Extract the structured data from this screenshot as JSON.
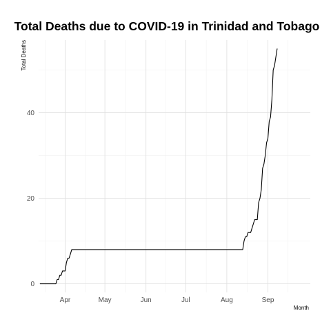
{
  "chart_data": {
    "type": "line",
    "title": "Total Deaths due to COVID-19 in Trinidad and Tobago",
    "xlabel": "Month",
    "ylabel": "Total Deaths",
    "x_tick_labels": [
      "Apr",
      "May",
      "Jun",
      "Jul",
      "Aug",
      "Sep"
    ],
    "y_tick_labels": [
      "0",
      "20",
      "40"
    ],
    "y_ticks": [
      0,
      20,
      40
    ],
    "ylim": [
      -2,
      57
    ],
    "xlim": [
      "2020-03-12",
      "2020-10-03"
    ],
    "grid": true,
    "series": [
      {
        "color": "#000000",
        "points": [
          [
            "2020-03-13",
            0
          ],
          [
            "2020-03-25",
            0
          ],
          [
            "2020-03-26",
            1
          ],
          [
            "2020-03-27",
            1
          ],
          [
            "2020-03-28",
            2
          ],
          [
            "2020-03-29",
            2
          ],
          [
            "2020-03-30",
            3
          ],
          [
            "2020-04-01",
            3
          ],
          [
            "2020-04-02",
            5
          ],
          [
            "2020-04-03",
            6
          ],
          [
            "2020-04-04",
            6
          ],
          [
            "2020-04-05",
            7
          ],
          [
            "2020-04-06",
            8
          ],
          [
            "2020-08-13",
            8
          ],
          [
            "2020-08-14",
            10
          ],
          [
            "2020-08-15",
            11
          ],
          [
            "2020-08-16",
            11
          ],
          [
            "2020-08-17",
            12
          ],
          [
            "2020-08-19",
            12
          ],
          [
            "2020-08-20",
            13
          ],
          [
            "2020-08-21",
            14
          ],
          [
            "2020-08-22",
            15
          ],
          [
            "2020-08-24",
            15
          ],
          [
            "2020-08-25",
            19
          ],
          [
            "2020-08-26",
            20
          ],
          [
            "2020-08-27",
            22
          ],
          [
            "2020-08-28",
            27
          ],
          [
            "2020-08-29",
            28
          ],
          [
            "2020-08-30",
            30
          ],
          [
            "2020-08-31",
            33
          ],
          [
            "2020-09-01",
            34
          ],
          [
            "2020-09-02",
            38
          ],
          [
            "2020-09-03",
            39
          ],
          [
            "2020-09-04",
            43
          ],
          [
            "2020-09-05",
            50
          ],
          [
            "2020-09-06",
            51
          ],
          [
            "2020-09-07",
            53
          ],
          [
            "2020-09-08",
            55
          ]
        ]
      }
    ]
  }
}
